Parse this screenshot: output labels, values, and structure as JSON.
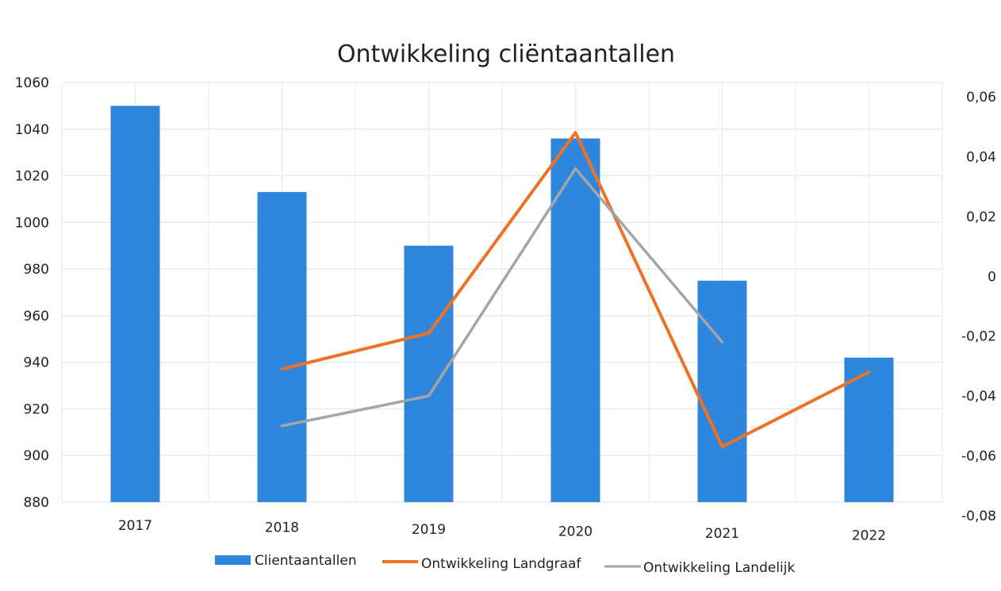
{
  "chart_data": {
    "type": "bar",
    "title": "Ontwikkeling cliëntaantallen",
    "categories": [
      "2017",
      "2018",
      "2019",
      "2020",
      "2021",
      "2022"
    ],
    "y_left": {
      "min": 880,
      "max": 1060,
      "ticks": [
        "1060",
        "1040",
        "1020",
        "1000",
        "980",
        "960",
        "940",
        "920",
        "900",
        "880"
      ]
    },
    "y_right": {
      "min": -0.08,
      "max": 0.06,
      "ticks": [
        "0,06",
        "0,04",
        "0,02",
        "0",
        "-0,02",
        "-0,04",
        "-0,06",
        "-0,08"
      ]
    },
    "series": [
      {
        "name": "Clientaantallen",
        "type": "bar",
        "axis": "left",
        "color": "#2f86dd",
        "values": [
          1050,
          1013,
          990,
          1036,
          975,
          942
        ]
      },
      {
        "name": "Ontwikkeling Landgraaf",
        "type": "line",
        "axis": "right",
        "color": "#ed7223",
        "values": [
          null,
          -0.031,
          -0.019,
          0.048,
          -0.057,
          -0.032
        ]
      },
      {
        "name": "Ontwikkeling Landelijk",
        "type": "line",
        "axis": "right",
        "color": "#a5a5a5",
        "values": [
          null,
          -0.05,
          -0.04,
          0.036,
          -0.022,
          null
        ]
      }
    ],
    "grid": true,
    "legend": "bottom"
  }
}
